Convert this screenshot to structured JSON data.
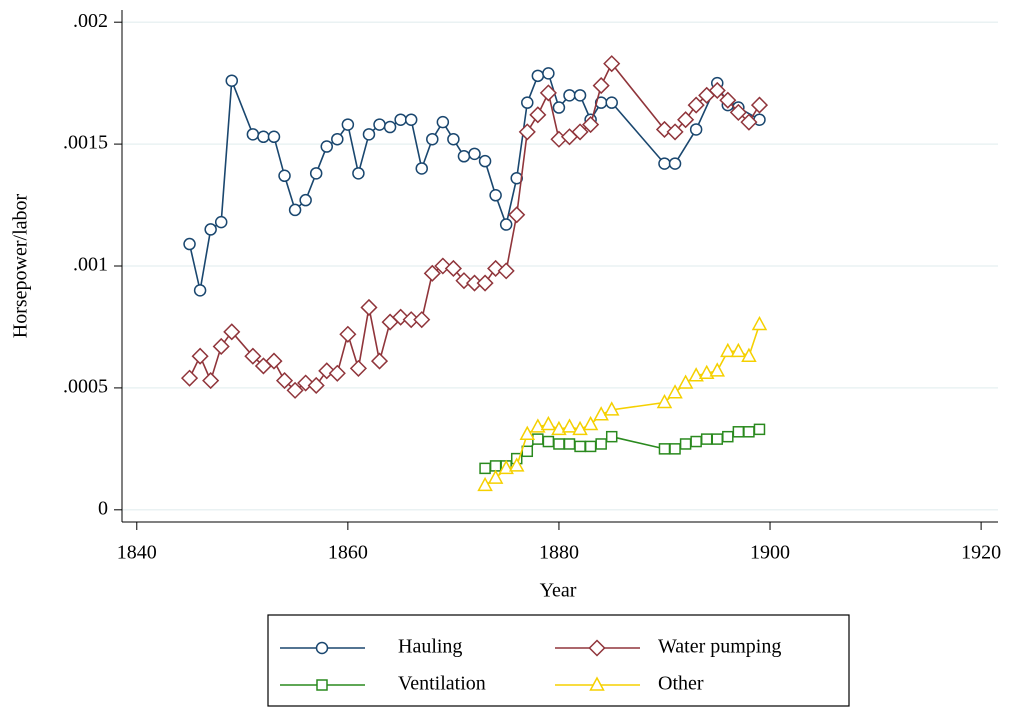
{
  "chart_data": {
    "type": "line",
    "x_label": "Year",
    "y_label": "Horsepower/labor",
    "xlim": [
      1838.6,
      1921.6
    ],
    "xticks": [
      1840,
      1860,
      1880,
      1900,
      1920
    ],
    "ylim": [
      -5e-05,
      0.00205
    ],
    "yticks": [
      0,
      {
        "value": 0.0005,
        "label": ".0005"
      },
      {
        "value": 0.001,
        "label": ".001"
      },
      {
        "value": 0.0015,
        "label": ".0015"
      },
      {
        "value": 0.002,
        "label": ".002"
      }
    ],
    "grid": true,
    "legend": "bottom",
    "series": [
      {
        "name": "Hauling",
        "color": "#1a476f",
        "marker": "circle",
        "x": [
          1845,
          1846,
          1847,
          1848,
          1849,
          1851,
          1852,
          1853,
          1854,
          1855,
          1856,
          1857,
          1858,
          1859,
          1860,
          1861,
          1862,
          1863,
          1864,
          1865,
          1866,
          1867,
          1868,
          1869,
          1870,
          1871,
          1872,
          1873,
          1874,
          1875,
          1876,
          1877,
          1878,
          1879,
          1880,
          1881,
          1882,
          1883,
          1884,
          1885,
          1890,
          1891,
          1893,
          1895,
          1896,
          1897,
          1899
        ],
        "values": [
          0.00109,
          0.0009,
          0.00115,
          0.00118,
          0.00176,
          0.00154,
          0.00153,
          0.00153,
          0.00137,
          0.00123,
          0.00127,
          0.00138,
          0.00149,
          0.00152,
          0.00158,
          0.00138,
          0.00154,
          0.00158,
          0.00157,
          0.0016,
          0.0016,
          0.0014,
          0.00152,
          0.00159,
          0.00152,
          0.00145,
          0.00146,
          0.00143,
          0.00129,
          0.00117,
          0.00136,
          0.00167,
          0.00178,
          0.00179,
          0.00165,
          0.0017,
          0.0017,
          0.0016,
          0.00167,
          0.00167,
          0.00142,
          0.00142,
          0.00156,
          0.00175,
          0.00166,
          0.00165,
          0.0016
        ]
      },
      {
        "name": "Water pumping",
        "color": "#90353b",
        "marker": "diamond",
        "x": [
          1845,
          1846,
          1847,
          1848,
          1849,
          1851,
          1852,
          1853,
          1854,
          1855,
          1856,
          1857,
          1858,
          1859,
          1860,
          1861,
          1862,
          1863,
          1864,
          1865,
          1866,
          1867,
          1868,
          1869,
          1870,
          1871,
          1872,
          1873,
          1874,
          1875,
          1876,
          1877,
          1878,
          1879,
          1880,
          1881,
          1882,
          1883,
          1884,
          1885,
          1890,
          1891,
          1892,
          1893,
          1894,
          1895,
          1896,
          1897,
          1898,
          1899
        ],
        "values": [
          0.00054,
          0.00063,
          0.00053,
          0.00067,
          0.00073,
          0.00063,
          0.00059,
          0.00061,
          0.00053,
          0.00049,
          0.00052,
          0.00051,
          0.00057,
          0.00056,
          0.00072,
          0.00058,
          0.00083,
          0.00061,
          0.00077,
          0.00079,
          0.00078,
          0.00078,
          0.00097,
          0.001,
          0.00099,
          0.00094,
          0.00093,
          0.00093,
          0.00099,
          0.00098,
          0.00121,
          0.00155,
          0.00162,
          0.00171,
          0.00152,
          0.00153,
          0.00155,
          0.00158,
          0.00174,
          0.00183,
          0.00156,
          0.00155,
          0.0016,
          0.00166,
          0.0017,
          0.00172,
          0.00168,
          0.00163,
          0.00159,
          0.00166
        ]
      },
      {
        "name": "Ventilation",
        "color": "#2a8a1e",
        "marker": "square",
        "x": [
          1873,
          1874,
          1875,
          1876,
          1877,
          1878,
          1879,
          1880,
          1881,
          1882,
          1883,
          1884,
          1885,
          1890,
          1891,
          1892,
          1893,
          1894,
          1895,
          1896,
          1897,
          1898,
          1899
        ],
        "values": [
          0.00017,
          0.00018,
          0.00018,
          0.00021,
          0.00024,
          0.00029,
          0.00028,
          0.00027,
          0.00027,
          0.00026,
          0.00026,
          0.00027,
          0.0003,
          0.00025,
          0.00025,
          0.00027,
          0.00028,
          0.00029,
          0.00029,
          0.0003,
          0.00032,
          0.00032,
          0.00033
        ]
      },
      {
        "name": "Other",
        "color": "#f5d000",
        "marker": "triangle",
        "x": [
          1873,
          1874,
          1875,
          1876,
          1877,
          1878,
          1879,
          1880,
          1881,
          1882,
          1883,
          1884,
          1885,
          1890,
          1891,
          1892,
          1893,
          1894,
          1895,
          1896,
          1897,
          1898,
          1899
        ],
        "values": [
          0.0001,
          0.00013,
          0.00017,
          0.00018,
          0.00031,
          0.00034,
          0.00035,
          0.00033,
          0.00034,
          0.00033,
          0.00035,
          0.00039,
          0.00041,
          0.00044,
          0.00048,
          0.00052,
          0.00055,
          0.00056,
          0.00057,
          0.00065,
          0.00065,
          0.00063,
          0.00076
        ]
      }
    ]
  }
}
